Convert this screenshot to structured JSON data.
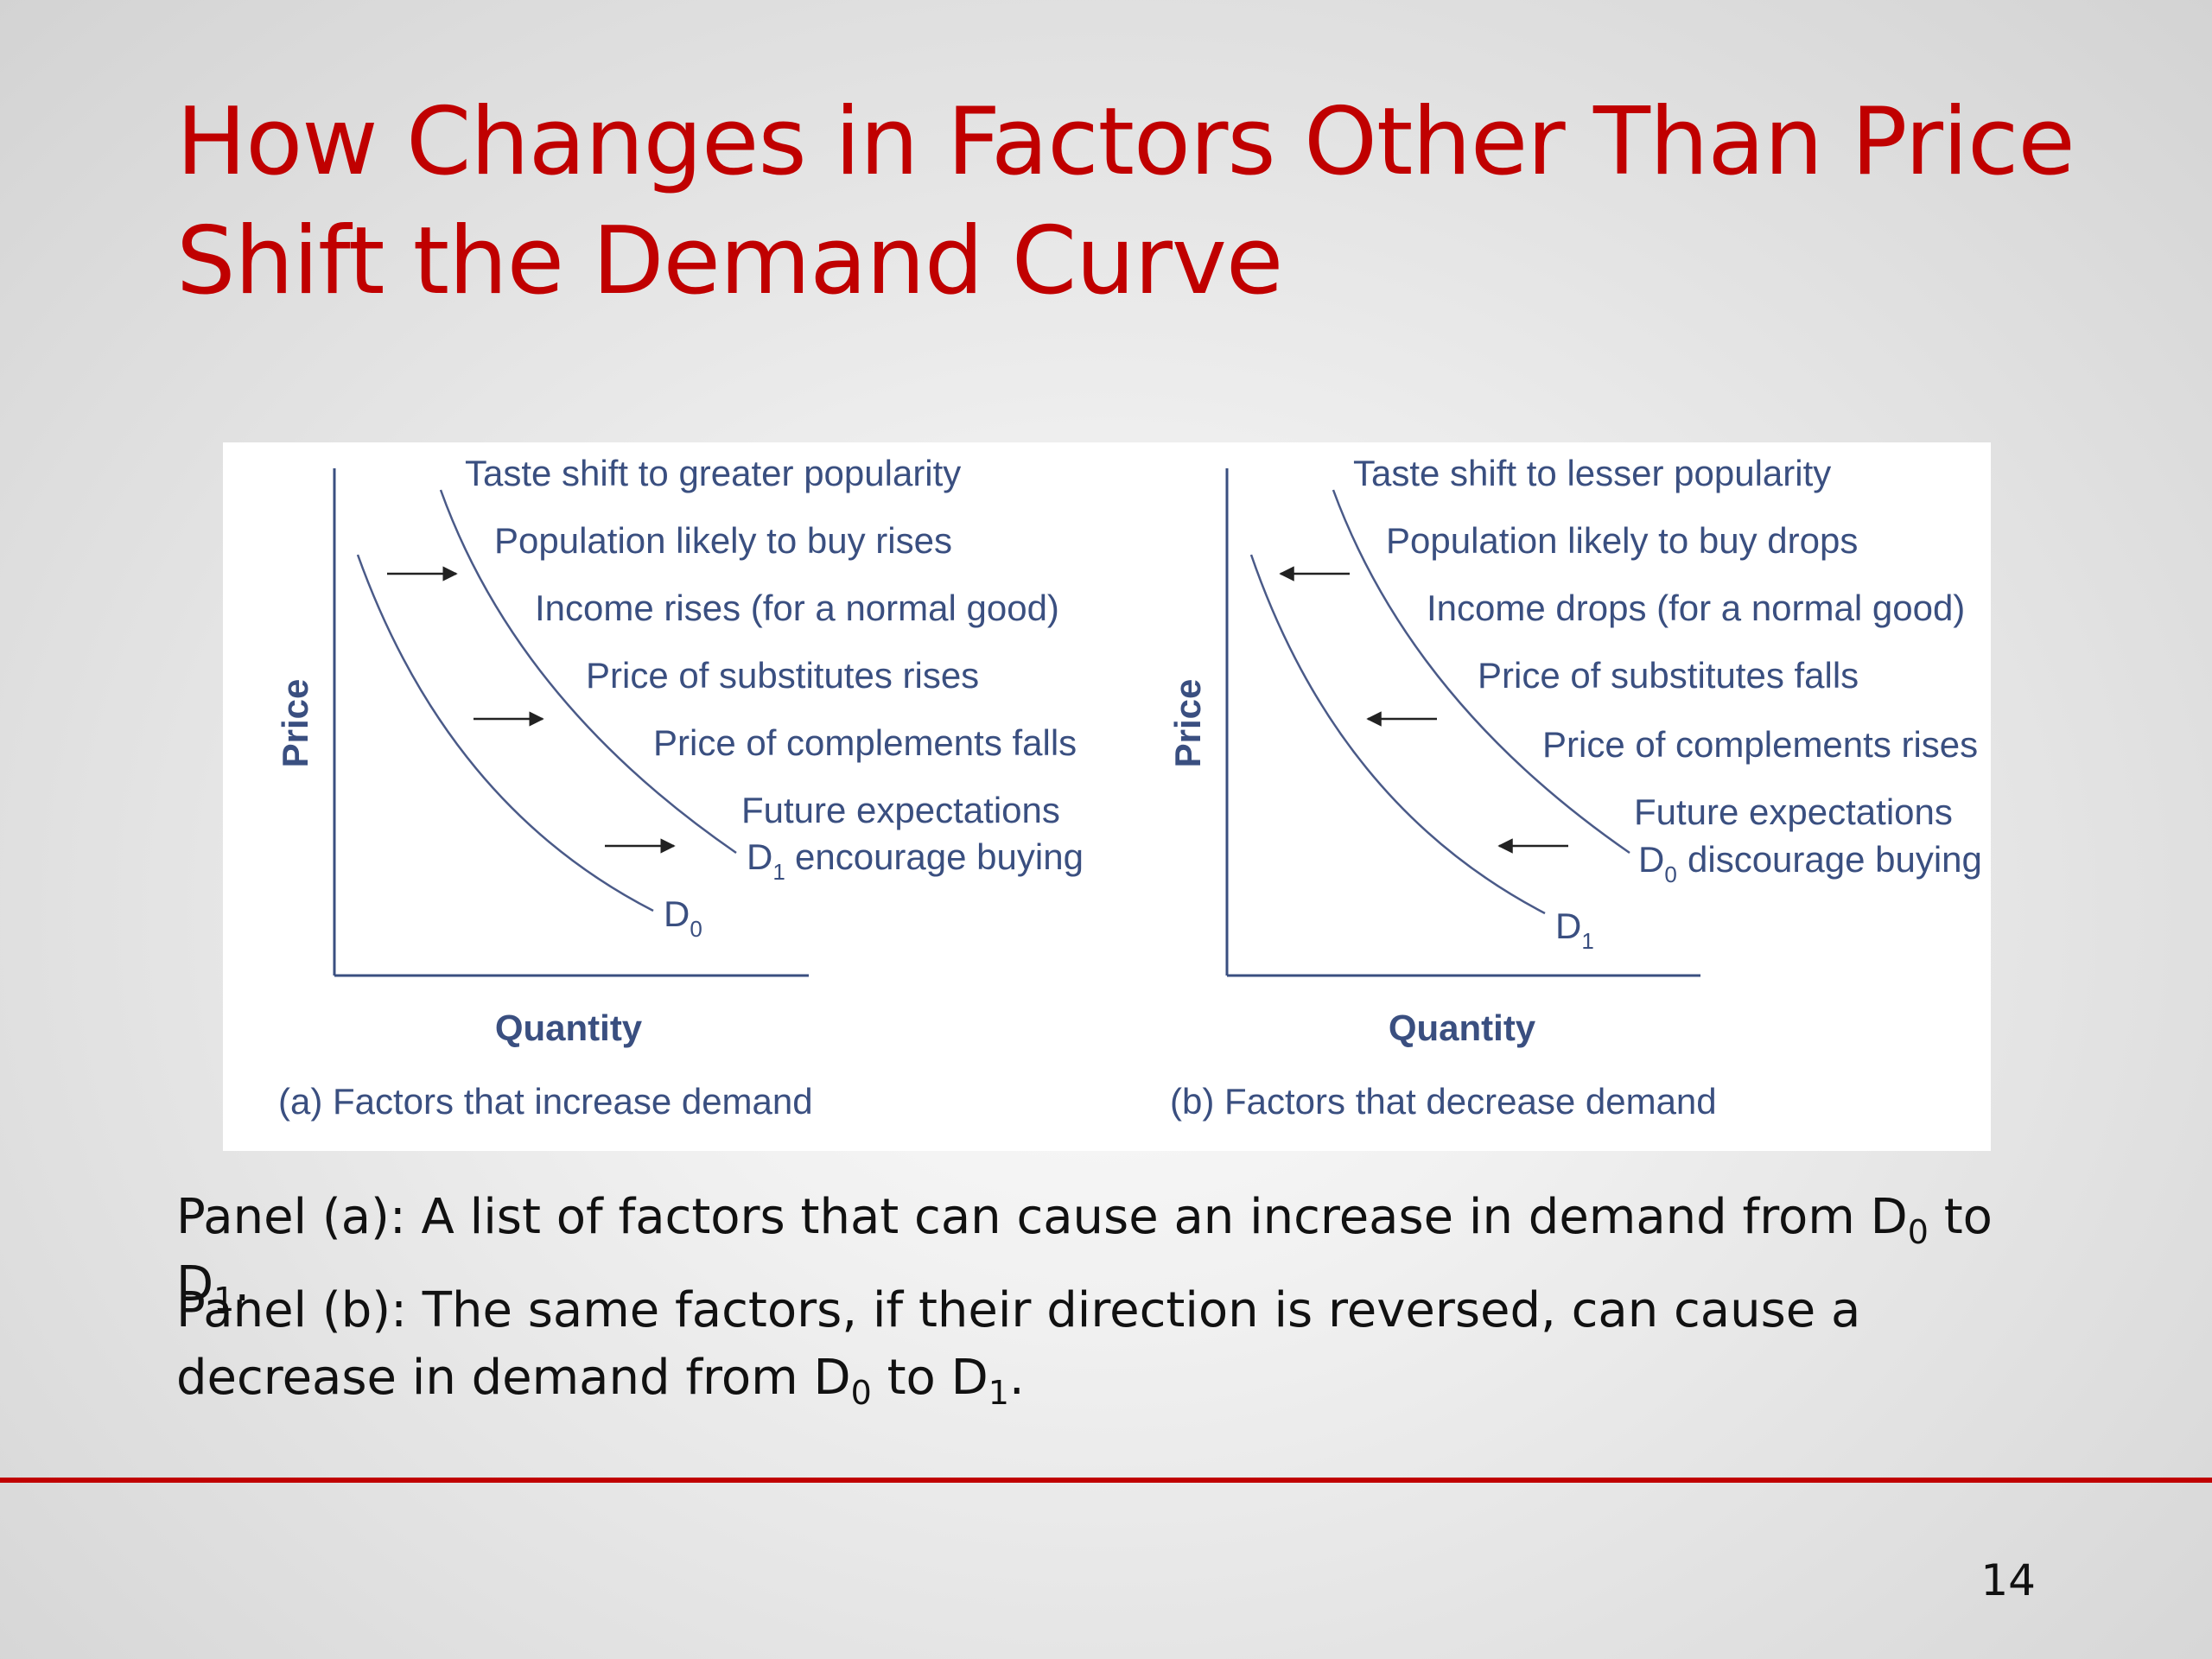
{
  "slide": {
    "title_line1": "How Changes in Factors Other Than Price",
    "title_line2": "Shift the Demand Curve",
    "number": "14",
    "accent_color": "#c00000"
  },
  "figure": {
    "panel_a": {
      "y_axis_label": "Price",
      "x_axis_label": "Quantity",
      "caption": "(a) Factors that increase demand",
      "factors": [
        "Taste shift to greater popularity",
        "Population likely to buy rises",
        "Income rises (for a normal good)",
        "Price of substitutes rises",
        "Price of complements falls",
        "Future expectations",
        "encourage buying"
      ],
      "curve_original": {
        "letter": "D",
        "sub": "0"
      },
      "curve_shifted": {
        "letter": "D",
        "sub": "1"
      },
      "shift_direction": "right"
    },
    "panel_b": {
      "y_axis_label": "Price",
      "x_axis_label": "Quantity",
      "caption": "(b) Factors that decrease demand",
      "factors": [
        "Taste shift to lesser popularity",
        "Population likely to buy drops",
        "Income drops (for a normal good)",
        "Price of substitutes falls",
        "Price of complements rises",
        "Future expectations",
        "discourage buying"
      ],
      "curve_original": {
        "letter": "D",
        "sub": "0"
      },
      "curve_shifted": {
        "letter": "D",
        "sub": "1"
      },
      "shift_direction": "left"
    },
    "text_color": "#3a4f80"
  },
  "captions": {
    "a_prefix": "Panel (a):  A list of factors that can cause an increase in demand from D",
    "a_sub1": "0",
    "a_mid": " to D",
    "a_sub2": "1",
    "a_end": ".",
    "b_prefix": "Panel (b):  The same factors, if their direction is reversed, can cause a decrease in demand from D",
    "b_sub1": "0",
    "b_mid": " to D",
    "b_sub2": "1",
    "b_end": "."
  }
}
